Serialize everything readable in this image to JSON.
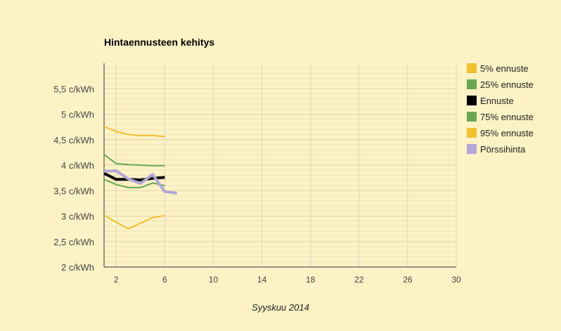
{
  "chart_data": {
    "type": "line",
    "title": "Hintaennusteen kehitys",
    "xlabel": "Syyskuu 2014",
    "ylabel": "",
    "xlim": [
      1,
      30
    ],
    "ylim": [
      2,
      6
    ],
    "x_ticks": [
      "2",
      "6",
      "10",
      "14",
      "18",
      "22",
      "26",
      "30"
    ],
    "y_ticks": [
      "2 c/kWh",
      "2,5 c/kWh",
      "3 c/kWh",
      "3,5 c/kWh",
      "4 c/kWh",
      "4,5 c/kWh",
      "5 c/kWh",
      "5,5 c/kWh"
    ],
    "grid": true,
    "legend_position": "right",
    "series": [
      {
        "name": "5% ennuste",
        "color": "#f0c030",
        "width": 2,
        "x": [
          1,
          2,
          3,
          4,
          5,
          6
        ],
        "y": [
          3.02,
          2.88,
          2.75,
          2.86,
          2.97,
          3.01
        ]
      },
      {
        "name": "25% ennuste",
        "color": "#6aa84f",
        "width": 2,
        "x": [
          1,
          2,
          3,
          4,
          5,
          6
        ],
        "y": [
          3.72,
          3.62,
          3.56,
          3.56,
          3.65,
          3.6
        ]
      },
      {
        "name": "Ennuste",
        "color": "#000000",
        "width": 4,
        "x": [
          1,
          2,
          3,
          4,
          5,
          6
        ],
        "y": [
          3.84,
          3.72,
          3.72,
          3.71,
          3.74,
          3.76
        ]
      },
      {
        "name": "75% ennuste",
        "color": "#6aa84f",
        "width": 2,
        "x": [
          1,
          2,
          3,
          4,
          5,
          6
        ],
        "y": [
          4.21,
          4.03,
          4.01,
          4.0,
          3.99,
          3.99
        ]
      },
      {
        "name": "95% ennuste",
        "color": "#f0c030",
        "width": 2,
        "x": [
          1,
          2,
          3,
          4,
          5,
          6
        ],
        "y": [
          4.76,
          4.66,
          4.6,
          4.58,
          4.58,
          4.56
        ]
      },
      {
        "name": "Pörssihinta",
        "color": "#b4a7d6",
        "width": 4,
        "x": [
          1,
          2,
          3,
          4,
          5,
          6,
          7
        ],
        "y": [
          3.88,
          3.89,
          3.73,
          3.64,
          3.82,
          3.48,
          3.45
        ]
      }
    ]
  }
}
